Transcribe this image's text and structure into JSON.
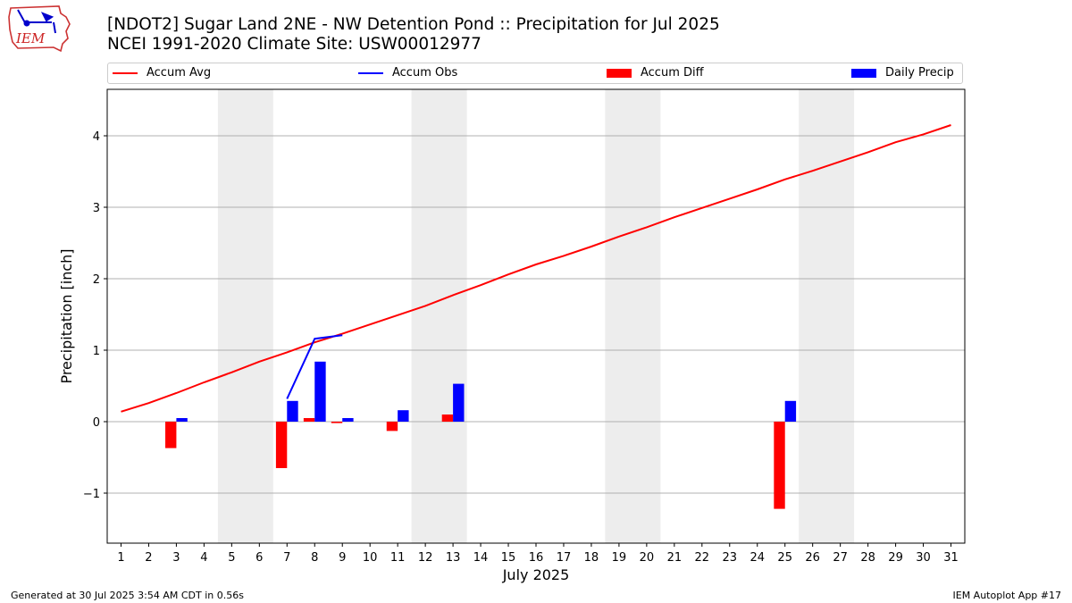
{
  "logo": {
    "text": "IEM"
  },
  "title": {
    "line1": "[NDOT2] Sugar Land 2NE - NW Detention Pond :: Precipitation for Jul 2025",
    "line2": "NCEI 1991-2020 Climate Site: USW00012977"
  },
  "legend": {
    "position": "top",
    "items": [
      {
        "label": "Accum Avg",
        "kind": "line",
        "color": "#ff0000"
      },
      {
        "label": "Accum Obs",
        "kind": "line",
        "color": "#0000ff"
      },
      {
        "label": "Accum Diff",
        "kind": "bar",
        "color": "#ff0000"
      },
      {
        "label": "Daily Precip",
        "kind": "bar",
        "color": "#0000ff"
      }
    ]
  },
  "footer": {
    "left": "Generated at 30 Jul 2025 3:54 AM CDT in 0.56s",
    "right": "IEM Autoplot App #17"
  },
  "chart_data": {
    "type": "bar",
    "xlabel": "July 2025",
    "ylabel": "Precipitation [inch]",
    "xlim": [
      0.5,
      31.5
    ],
    "ylim": [
      -1.7,
      4.65
    ],
    "yticks": [
      -1,
      0,
      1,
      2,
      3,
      4
    ],
    "ytick_labels": [
      "−1",
      "0",
      "1",
      "2",
      "3",
      "4"
    ],
    "categories": [
      1,
      2,
      3,
      4,
      5,
      6,
      7,
      8,
      9,
      10,
      11,
      12,
      13,
      14,
      15,
      16,
      17,
      18,
      19,
      20,
      21,
      22,
      23,
      24,
      25,
      26,
      27,
      28,
      29,
      30,
      31
    ],
    "grid": "horizontal",
    "weekend_shading": [
      [
        4.5,
        6.5
      ],
      [
        11.5,
        13.5
      ],
      [
        18.5,
        20.5
      ],
      [
        25.5,
        27.5
      ]
    ],
    "series": [
      {
        "name": "Accum Avg",
        "kind": "line",
        "color": "#ff0000",
        "x": [
          1,
          2,
          3,
          4,
          5,
          6,
          7,
          8,
          9,
          10,
          11,
          12,
          13,
          14,
          15,
          16,
          17,
          18,
          19,
          20,
          21,
          22,
          23,
          24,
          25,
          26,
          27,
          28,
          29,
          30,
          31
        ],
        "values": [
          0.14,
          0.26,
          0.4,
          0.55,
          0.69,
          0.84,
          0.97,
          1.11,
          1.23,
          1.36,
          1.49,
          1.62,
          1.77,
          1.91,
          2.06,
          2.2,
          2.32,
          2.45,
          2.59,
          2.72,
          2.86,
          2.99,
          3.12,
          3.25,
          3.39,
          3.51,
          3.64,
          3.77,
          3.91,
          4.02,
          4.15
        ]
      },
      {
        "name": "Accum Obs",
        "kind": "line",
        "color": "#0000ff",
        "x": [
          7,
          8,
          9
        ],
        "values": [
          0.32,
          1.16,
          1.21
        ]
      },
      {
        "name": "Accum Diff",
        "kind": "bar",
        "color": "#ff0000",
        "offset": "left",
        "x": [
          3,
          7,
          8,
          9,
          11,
          13,
          25
        ],
        "values": [
          -0.37,
          -0.65,
          0.05,
          -0.02,
          -0.13,
          0.1,
          -1.22
        ]
      },
      {
        "name": "Daily Precip",
        "kind": "bar",
        "color": "#0000ff",
        "offset": "right",
        "x": [
          3,
          7,
          8,
          9,
          11,
          13,
          25
        ],
        "values": [
          0.05,
          0.29,
          0.84,
          0.05,
          0.16,
          0.53,
          0.29
        ]
      }
    ]
  }
}
